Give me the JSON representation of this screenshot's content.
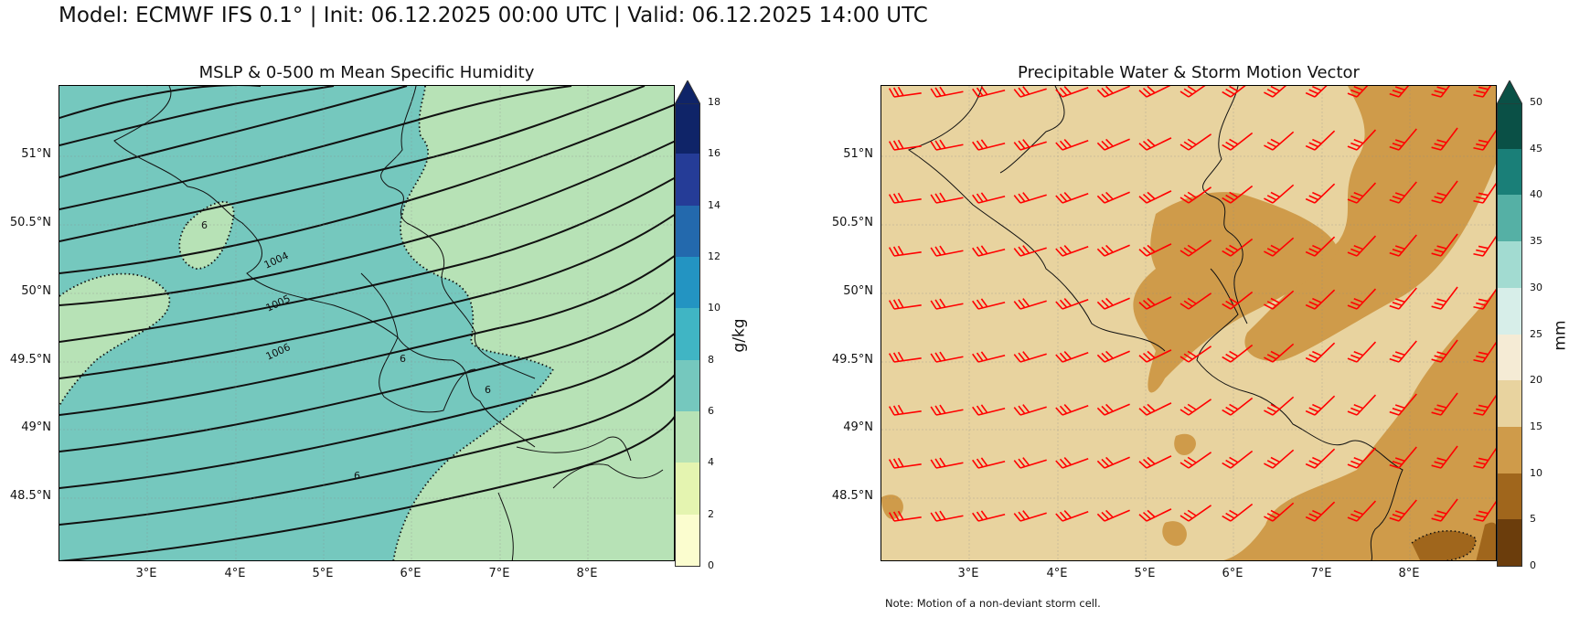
{
  "header": {
    "title": "Model: ECMWF IFS 0.1° | Init: 06.12.2025 00:00 UTC | Valid: 06.12.2025 14:00 UTC"
  },
  "left_panel": {
    "title": "MSLP & 0-500 m Mean Specific Humidity",
    "lat_labels": [
      "51°N",
      "50.5°N",
      "50°N",
      "49.5°N",
      "49°N",
      "48.5°N"
    ],
    "lon_labels": [
      "3°E",
      "4°E",
      "5°E",
      "6°E",
      "7°E",
      "8°E"
    ],
    "isobar_labels": [
      "1004",
      "1005",
      "1006"
    ],
    "humidity_labels": [
      "6",
      "6",
      "6",
      "6"
    ],
    "colorbar": {
      "unit": "g/kg",
      "ticks": [
        "0",
        "2",
        "4",
        "6",
        "8",
        "10",
        "12",
        "14",
        "16",
        "18"
      ],
      "colors": [
        "#fbfdcf",
        "#e4f4b0",
        "#b7e2b6",
        "#75c8be",
        "#40b5c4",
        "#2394c2",
        "#2369ad",
        "#253c97",
        "#0f2468",
        "#0f2468"
      ]
    },
    "colors": {
      "moist": "#75c8be",
      "dry": "#b7e2b6"
    }
  },
  "right_panel": {
    "title": "Precipitable Water & Storm Motion Vector",
    "lat_labels": [
      "51°N",
      "50.5°N",
      "50°N",
      "49.5°N",
      "49°N",
      "48.5°N"
    ],
    "lon_labels": [
      "3°E",
      "4°E",
      "5°E",
      "6°E",
      "7°E",
      "8°E"
    ],
    "colorbar": {
      "unit": "mm",
      "ticks": [
        "0",
        "5",
        "10",
        "15",
        "20",
        "25",
        "30",
        "35",
        "40",
        "45",
        "50"
      ],
      "colors": [
        "#6b3d0c",
        "#a0661c",
        "#cf9b4a",
        "#e8d39f",
        "#f5ebd5",
        "#d7eee9",
        "#a2dbd1",
        "#55b0a5",
        "#1a7f78",
        "#0a5046",
        "#0a5046"
      ]
    },
    "colors": {
      "base": "#e8d39f",
      "wet": "#cf9b4a",
      "wettest": "#a0661c",
      "barb": "#ff0000"
    }
  },
  "footer": {
    "note": "Note: Motion of a non-deviant storm cell."
  }
}
